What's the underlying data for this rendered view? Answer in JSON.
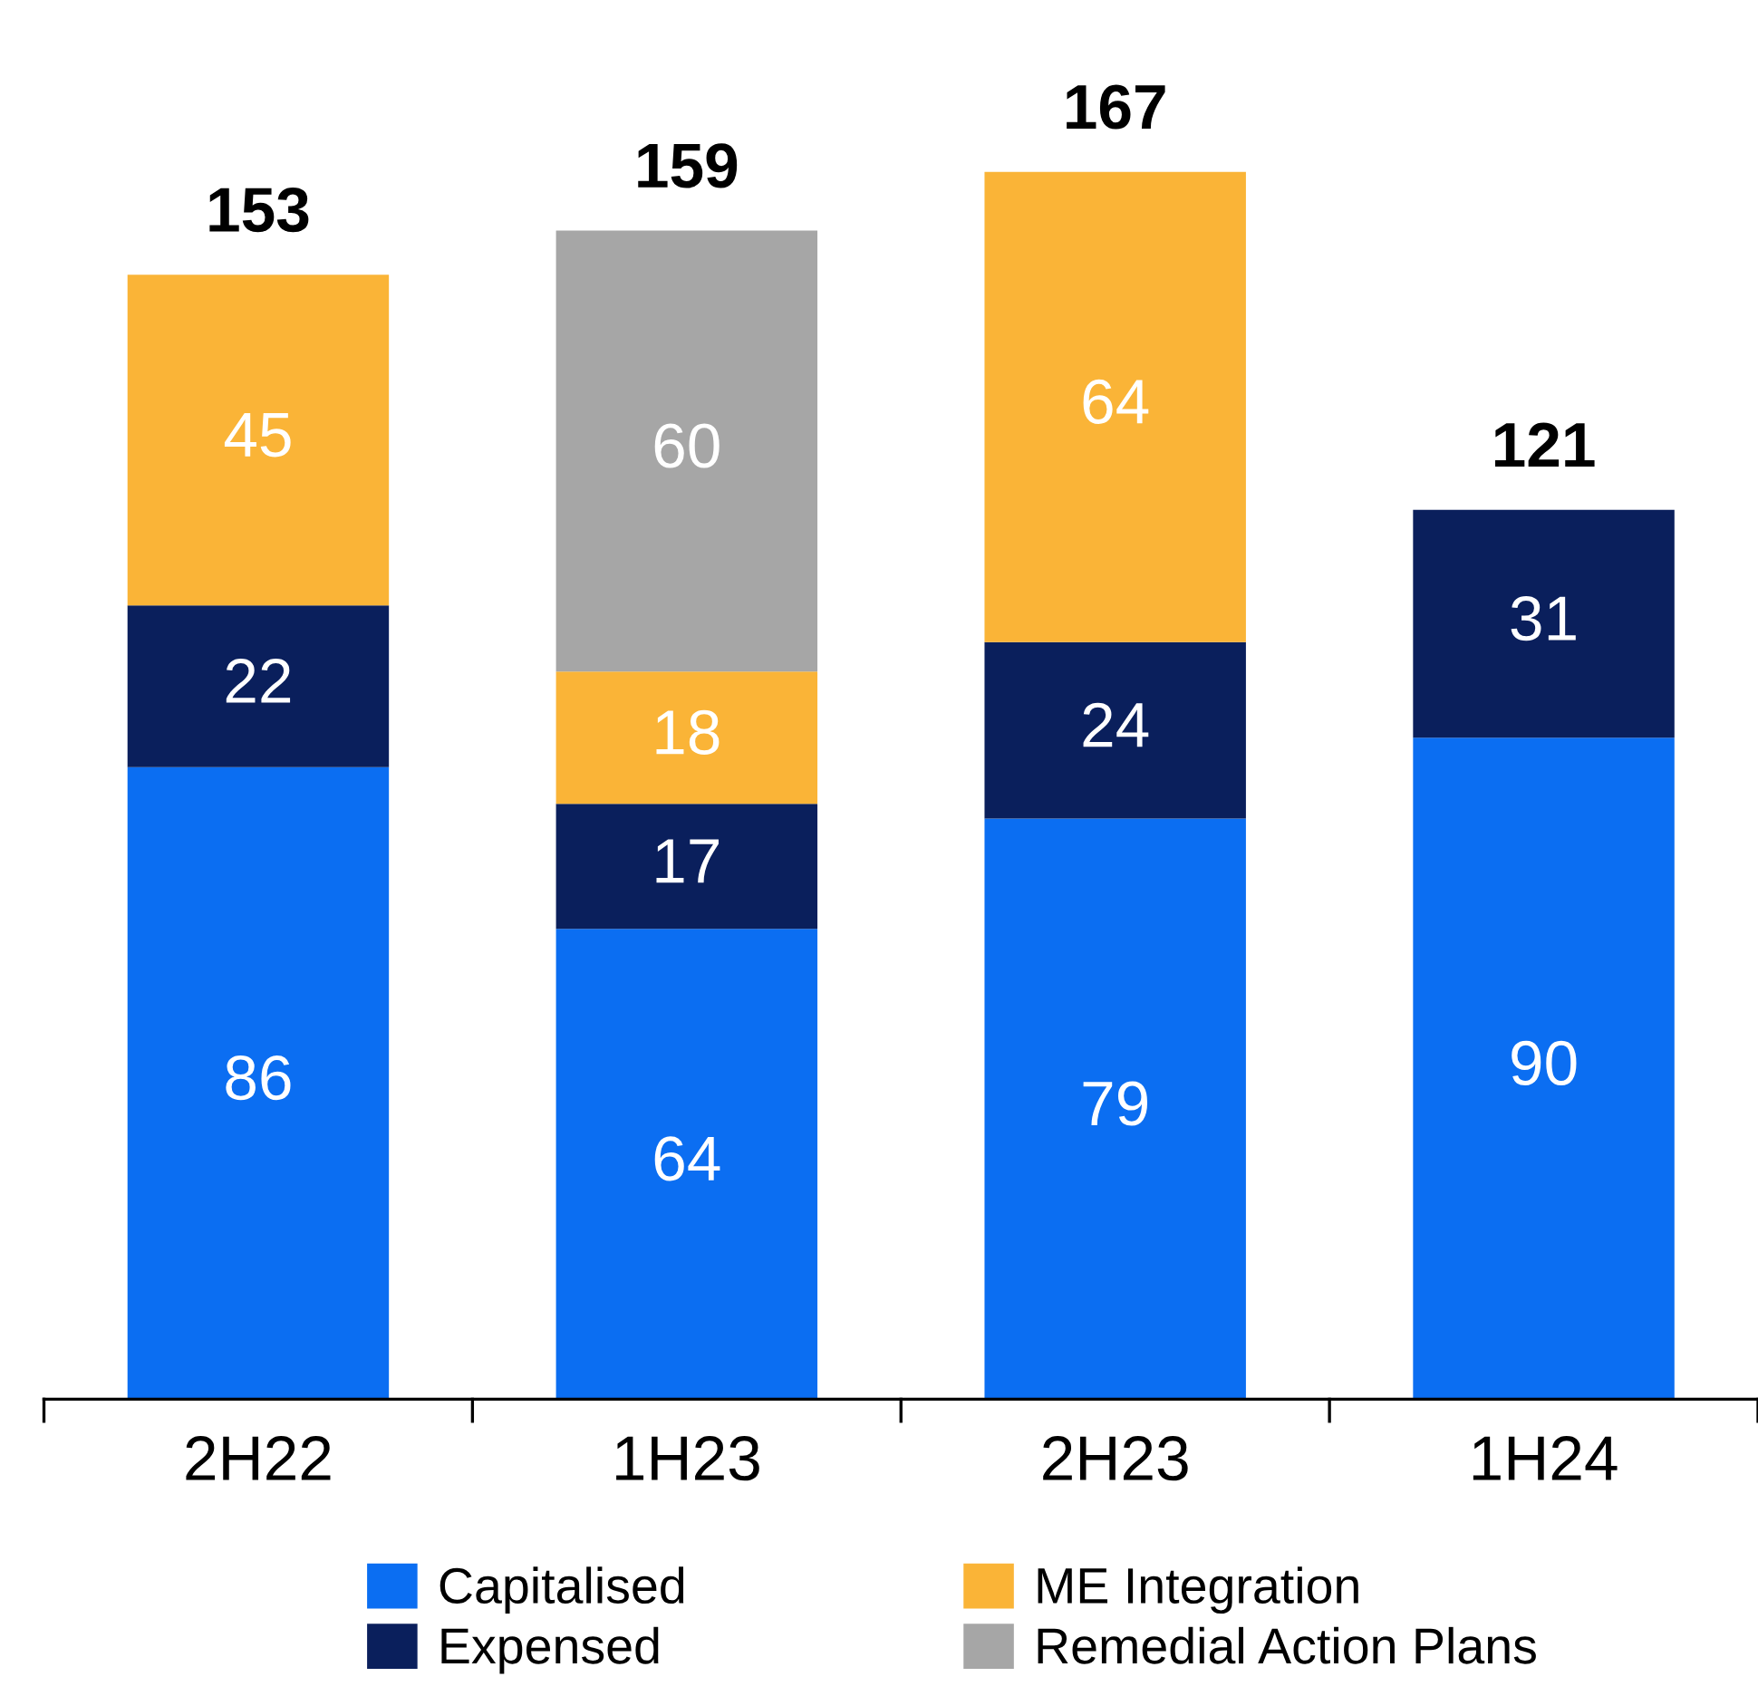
{
  "chart_data": {
    "type": "bar",
    "stacked": true,
    "categories": [
      "2H22",
      "1H23",
      "2H23",
      "1H24"
    ],
    "series": [
      {
        "name": "Capitalised",
        "color": "#0b6ef2",
        "values": [
          86,
          64,
          79,
          90
        ]
      },
      {
        "name": "Expensed",
        "color": "#0a1f5c",
        "values": [
          22,
          17,
          24,
          31
        ]
      },
      {
        "name": "ME Integration",
        "color": "#fab437",
        "values": [
          45,
          18,
          64,
          null
        ]
      },
      {
        "name": "Remedial Action Plans",
        "color": "#a6a6a6",
        "values": [
          null,
          60,
          null,
          null
        ]
      }
    ],
    "data_labels": true,
    "totals": [
      "153",
      "159",
      "167",
      "121"
    ],
    "legend": "bottom",
    "grid": false
  }
}
